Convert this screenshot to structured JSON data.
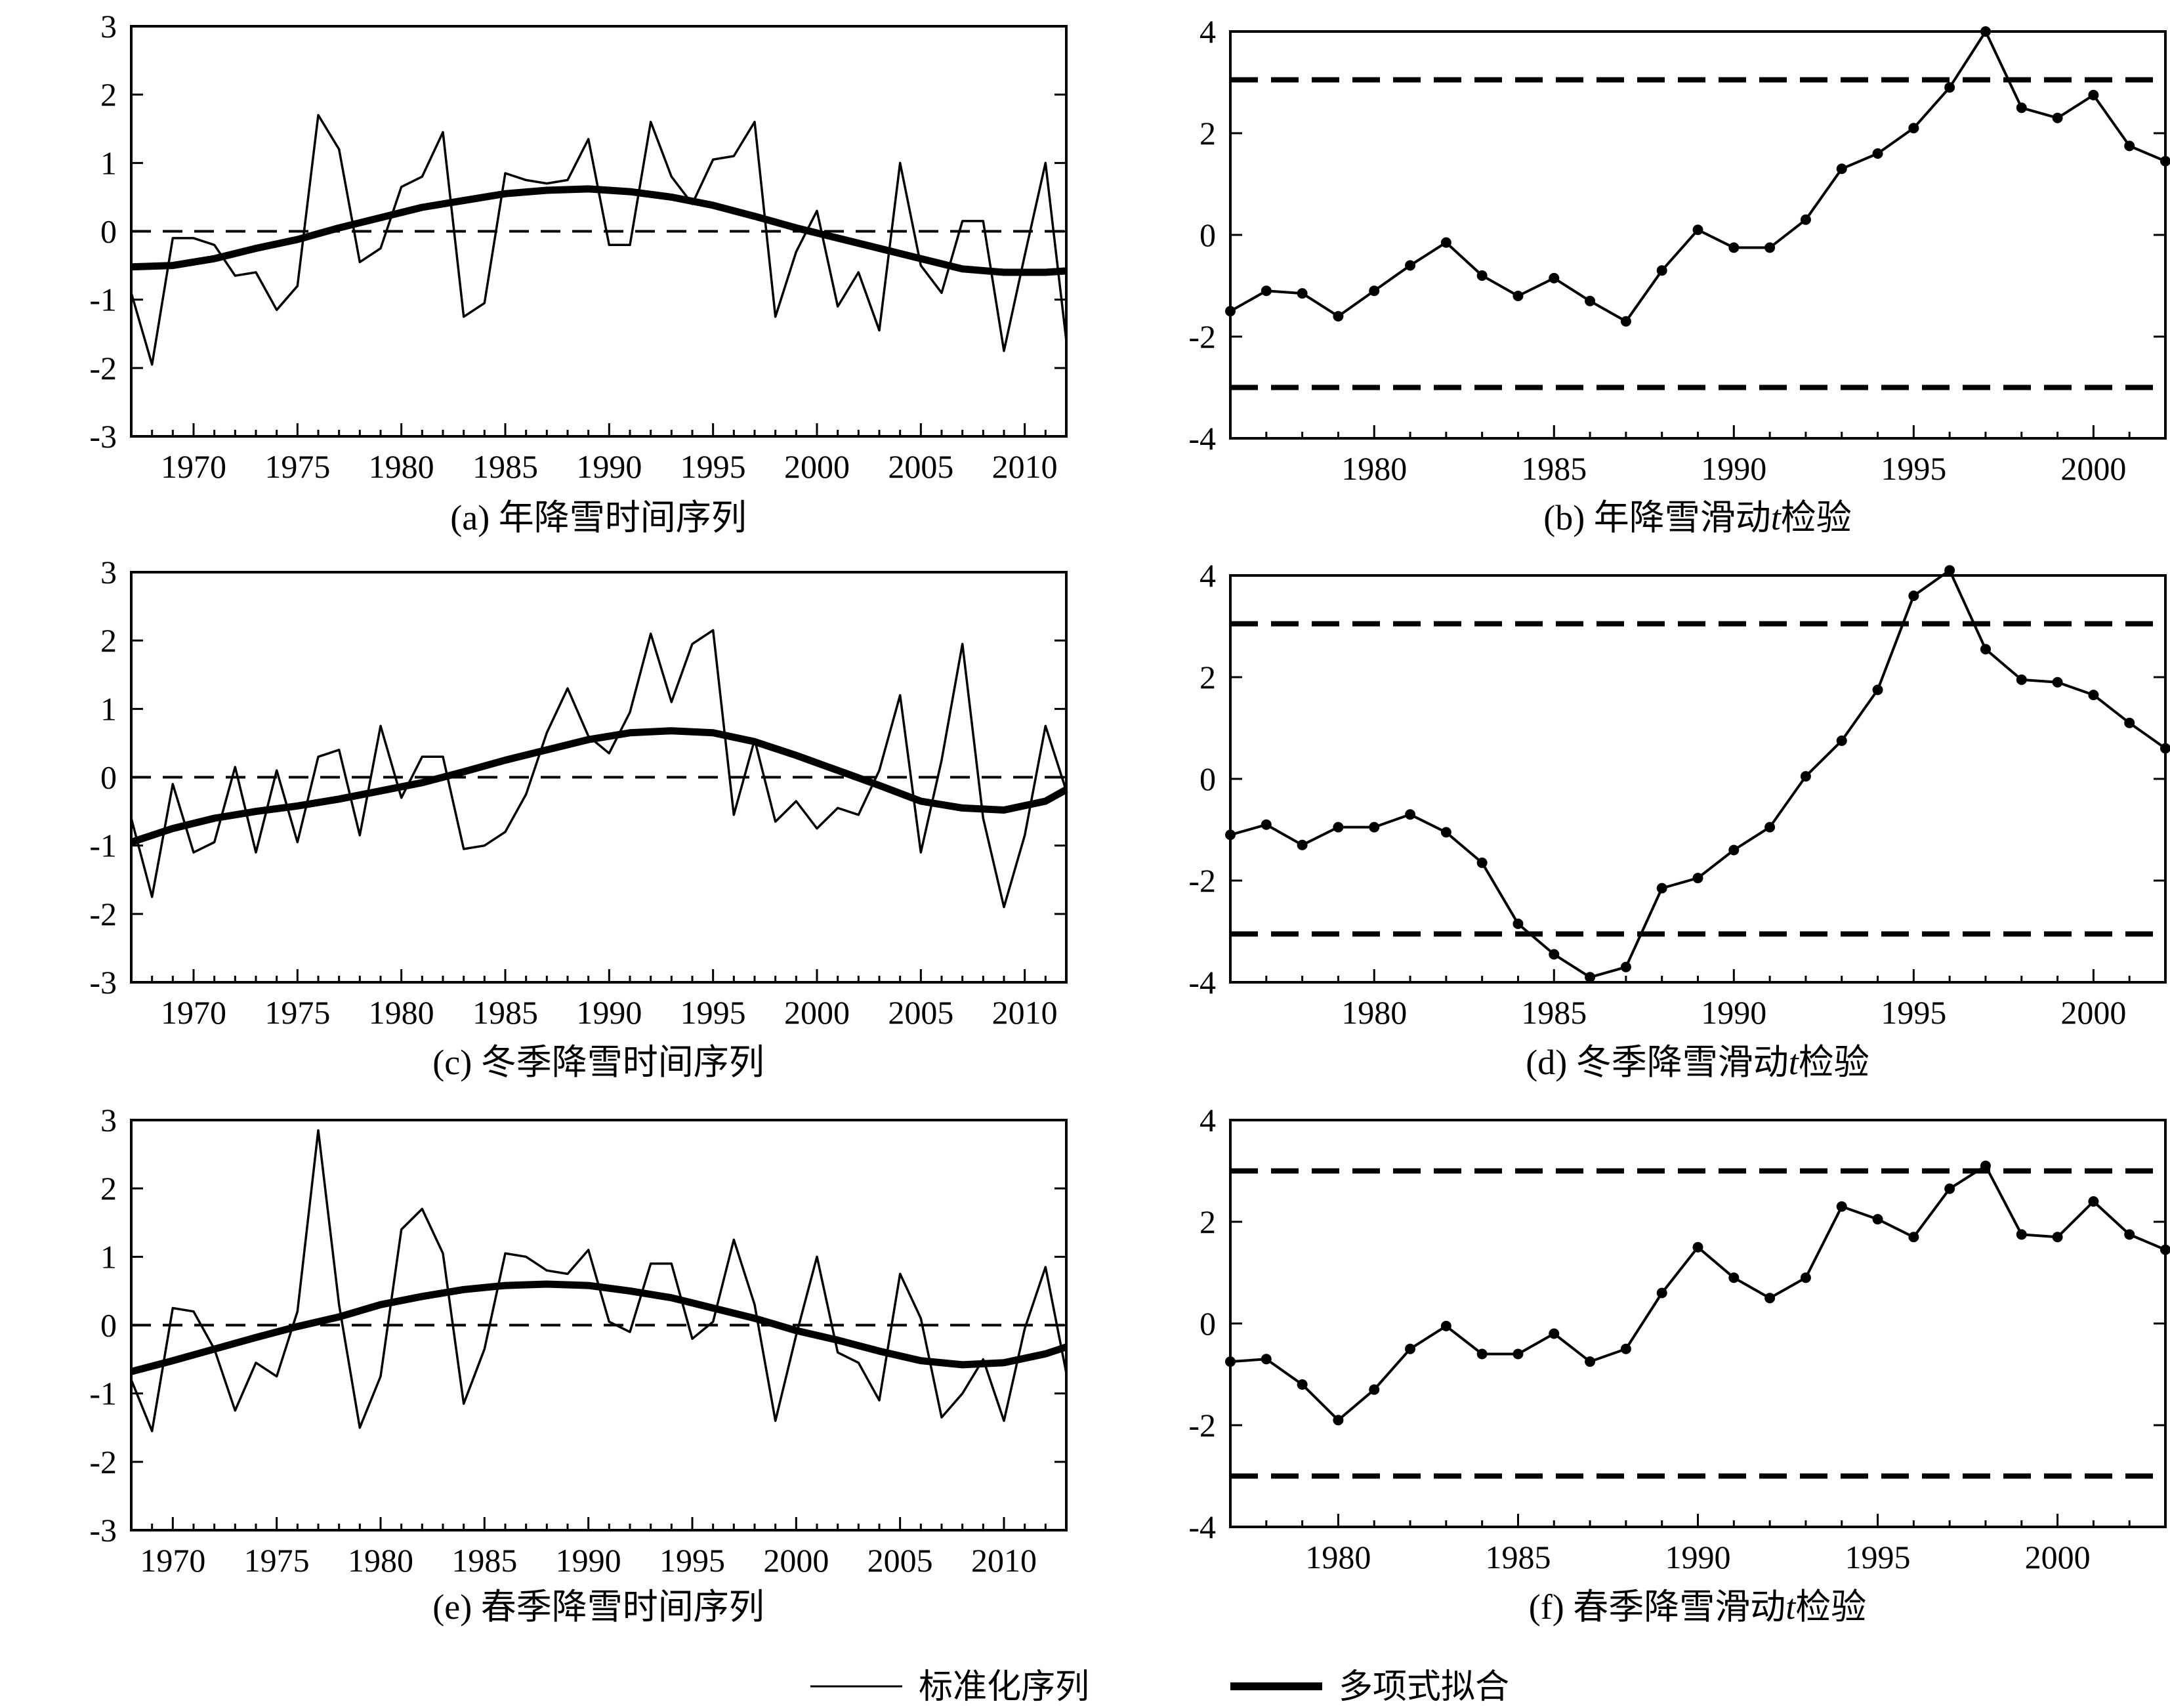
{
  "chart_data": [
    {
      "id": "a",
      "type": "line",
      "caption": "(a) 年降雪时间序列",
      "xlim": [
        1967,
        2012
      ],
      "ylim": [
        -3,
        3
      ],
      "xticks": [
        1970,
        1975,
        1980,
        1985,
        1990,
        1995,
        2000,
        2005,
        2010
      ],
      "yticks": [
        -3,
        -2,
        -1,
        0,
        1,
        2,
        3
      ],
      "ref_lines": [
        0
      ],
      "series": [
        {
          "role": "standardized",
          "x": [
            1967,
            1968,
            1969,
            1970,
            1971,
            1972,
            1973,
            1974,
            1975,
            1976,
            1977,
            1978,
            1979,
            1980,
            1981,
            1982,
            1983,
            1984,
            1985,
            1986,
            1987,
            1988,
            1989,
            1990,
            1991,
            1992,
            1993,
            1994,
            1995,
            1996,
            1997,
            1998,
            1999,
            2000,
            2001,
            2002,
            2003,
            2004,
            2005,
            2006,
            2007,
            2008,
            2009,
            2010,
            2011,
            2012
          ],
          "y": [
            -0.9,
            -1.95,
            -0.1,
            -0.1,
            -0.2,
            -0.65,
            -0.6,
            -1.15,
            -0.8,
            1.7,
            1.2,
            -0.45,
            -0.25,
            0.65,
            0.8,
            1.45,
            -1.25,
            -1.05,
            0.85,
            0.75,
            0.7,
            0.75,
            1.35,
            -0.2,
            -0.2,
            1.6,
            0.8,
            0.4,
            1.05,
            1.1,
            1.6,
            -1.25,
            -0.3,
            0.3,
            -1.1,
            -0.6,
            -1.45,
            1.0,
            -0.5,
            -0.9,
            0.15,
            0.15,
            -1.75,
            -0.35,
            1.0,
            -1.6
          ]
        },
        {
          "role": "polynomial",
          "x": [
            1967,
            1969,
            1971,
            1973,
            1975,
            1977,
            1979,
            1981,
            1983,
            1985,
            1987,
            1989,
            1991,
            1993,
            1995,
            1997,
            1999,
            2001,
            2003,
            2005,
            2007,
            2009,
            2011,
            2012
          ],
          "y": [
            -0.52,
            -0.5,
            -0.4,
            -0.25,
            -0.12,
            0.05,
            0.2,
            0.35,
            0.45,
            0.55,
            0.6,
            0.62,
            0.58,
            0.5,
            0.38,
            0.22,
            0.05,
            -0.1,
            -0.25,
            -0.4,
            -0.55,
            -0.6,
            -0.6,
            -0.58
          ]
        }
      ]
    },
    {
      "id": "b",
      "type": "line",
      "caption": "(b) 年降雪滑动",
      "caption_italic": "t",
      "caption_tail": "检验",
      "xlim": [
        1976,
        2002
      ],
      "ylim": [
        -4,
        4
      ],
      "xticks": [
        1980,
        1985,
        1990,
        1995,
        2000
      ],
      "yticks": [
        -4,
        -2,
        0,
        2,
        4
      ],
      "ref_lines": [
        3.05,
        -3.0
      ],
      "series": [
        {
          "role": "t_stat",
          "markers": true,
          "x": [
            1976,
            1977,
            1978,
            1979,
            1980,
            1981,
            1982,
            1983,
            1984,
            1985,
            1986,
            1987,
            1988,
            1989,
            1990,
            1991,
            1992,
            1993,
            1994,
            1995,
            1996,
            1997,
            1998,
            1999,
            2000,
            2001,
            2002
          ],
          "y": [
            -1.5,
            -1.1,
            -1.15,
            -1.6,
            -1.1,
            -0.6,
            -0.15,
            -0.8,
            -1.2,
            -0.85,
            -1.3,
            -1.7,
            -0.7,
            0.1,
            -0.25,
            -0.25,
            0.3,
            1.3,
            1.6,
            2.1,
            2.9,
            4.0,
            2.5,
            2.3,
            2.75,
            1.75,
            1.45
          ]
        }
      ]
    },
    {
      "id": "c",
      "type": "line",
      "caption": "(c) 冬季降雪时间序列",
      "xlim": [
        1967,
        2012
      ],
      "ylim": [
        -3,
        3
      ],
      "xticks": [
        1970,
        1975,
        1980,
        1985,
        1990,
        1995,
        2000,
        2005,
        2010
      ],
      "yticks": [
        -3,
        -2,
        -1,
        0,
        1,
        2,
        3
      ],
      "ref_lines": [
        0
      ],
      "series": [
        {
          "role": "standardized",
          "x": [
            1967,
            1968,
            1969,
            1970,
            1971,
            1972,
            1973,
            1974,
            1975,
            1976,
            1977,
            1978,
            1979,
            1980,
            1981,
            1982,
            1983,
            1984,
            1985,
            1986,
            1987,
            1988,
            1989,
            1990,
            1991,
            1992,
            1993,
            1994,
            1995,
            1996,
            1997,
            1998,
            1999,
            2000,
            2001,
            2002,
            2003,
            2004,
            2005,
            2006,
            2007,
            2008,
            2009,
            2010,
            2011,
            2012
          ],
          "y": [
            -0.6,
            -1.75,
            -0.1,
            -1.1,
            -0.95,
            0.15,
            -1.1,
            0.1,
            -0.95,
            0.3,
            0.4,
            -0.85,
            0.75,
            -0.3,
            0.3,
            0.3,
            -1.05,
            -1.0,
            -0.8,
            -0.25,
            0.65,
            1.3,
            0.6,
            0.35,
            0.95,
            2.1,
            1.1,
            1.95,
            2.15,
            -0.55,
            0.55,
            -0.65,
            -0.35,
            -0.75,
            -0.45,
            -0.55,
            0.1,
            1.2,
            -1.1,
            0.25,
            1.95,
            -0.6,
            -1.9,
            -0.85,
            0.75,
            -0.2
          ]
        },
        {
          "role": "polynomial",
          "x": [
            1967,
            1969,
            1971,
            1973,
            1975,
            1977,
            1979,
            1981,
            1983,
            1985,
            1987,
            1989,
            1991,
            1993,
            1995,
            1997,
            1999,
            2001,
            2003,
            2005,
            2007,
            2009,
            2011,
            2012
          ],
          "y": [
            -0.95,
            -0.75,
            -0.6,
            -0.5,
            -0.42,
            -0.32,
            -0.2,
            -0.08,
            0.08,
            0.25,
            0.4,
            0.55,
            0.65,
            0.68,
            0.65,
            0.52,
            0.32,
            0.1,
            -0.12,
            -0.35,
            -0.45,
            -0.48,
            -0.35,
            -0.18
          ]
        }
      ]
    },
    {
      "id": "d",
      "type": "line",
      "caption": "(d) 冬季降雪滑动",
      "caption_italic": "t",
      "caption_tail": "检验",
      "xlim": [
        1976,
        2002
      ],
      "ylim": [
        -4,
        4
      ],
      "xticks": [
        1980,
        1985,
        1990,
        1995,
        2000
      ],
      "yticks": [
        -4,
        -2,
        0,
        2,
        4
      ],
      "ref_lines": [
        3.05,
        -3.05
      ],
      "series": [
        {
          "role": "t_stat",
          "markers": true,
          "x": [
            1976,
            1977,
            1978,
            1979,
            1980,
            1981,
            1982,
            1983,
            1984,
            1985,
            1986,
            1987,
            1988,
            1989,
            1990,
            1991,
            1992,
            1993,
            1994,
            1995,
            1996,
            1997,
            1998,
            1999,
            2000,
            2001,
            2002
          ],
          "y": [
            -1.1,
            -0.9,
            -1.3,
            -0.95,
            -0.95,
            -0.7,
            -1.05,
            -1.65,
            -2.85,
            -3.45,
            -3.9,
            -3.7,
            -2.15,
            -1.95,
            -1.4,
            -0.95,
            0.05,
            0.75,
            1.75,
            3.6,
            4.1,
            2.55,
            1.95,
            1.9,
            1.65,
            1.1,
            0.6
          ]
        }
      ]
    },
    {
      "id": "e",
      "type": "line",
      "caption": "(e) 春季降雪时间序列",
      "xlim": [
        1968,
        2013
      ],
      "ylim": [
        -3,
        3
      ],
      "xticks": [
        1970,
        1975,
        1980,
        1985,
        1990,
        1995,
        2000,
        2005,
        2010
      ],
      "yticks": [
        -3,
        -2,
        -1,
        0,
        1,
        2,
        3
      ],
      "ref_lines": [
        0
      ],
      "series": [
        {
          "role": "standardized",
          "x": [
            1968,
            1969,
            1970,
            1971,
            1972,
            1973,
            1974,
            1975,
            1976,
            1977,
            1978,
            1979,
            1980,
            1981,
            1982,
            1983,
            1984,
            1985,
            1986,
            1987,
            1988,
            1989,
            1990,
            1991,
            1992,
            1993,
            1994,
            1995,
            1996,
            1997,
            1998,
            1999,
            2000,
            2001,
            2002,
            2003,
            2004,
            2005,
            2006,
            2007,
            2008,
            2009,
            2010,
            2011,
            2012,
            2013
          ],
          "y": [
            -0.8,
            -1.55,
            0.25,
            0.2,
            -0.35,
            -1.25,
            -0.55,
            -0.75,
            0.2,
            2.85,
            0.3,
            -1.5,
            -0.75,
            1.4,
            1.7,
            1.05,
            -1.15,
            -0.35,
            1.05,
            1.0,
            0.8,
            0.75,
            1.1,
            0.05,
            -0.1,
            0.9,
            0.9,
            -0.2,
            0.05,
            1.25,
            0.3,
            -1.4,
            -0.15,
            1.0,
            -0.4,
            -0.55,
            -1.1,
            0.75,
            0.1,
            -1.35,
            -1.0,
            -0.5,
            -1.4,
            -0.05,
            0.85,
            -0.7
          ]
        },
        {
          "role": "polynomial",
          "x": [
            1968,
            1970,
            1972,
            1974,
            1976,
            1978,
            1980,
            1982,
            1984,
            1986,
            1988,
            1990,
            1992,
            1994,
            1996,
            1998,
            2000,
            2002,
            2004,
            2006,
            2008,
            2010,
            2012,
            2013
          ],
          "y": [
            -0.68,
            -0.52,
            -0.35,
            -0.18,
            -0.02,
            0.12,
            0.3,
            0.42,
            0.52,
            0.58,
            0.6,
            0.58,
            0.5,
            0.4,
            0.25,
            0.1,
            -0.08,
            -0.22,
            -0.38,
            -0.52,
            -0.58,
            -0.55,
            -0.42,
            -0.32
          ]
        }
      ]
    },
    {
      "id": "f",
      "type": "line",
      "caption": "(f) 春季降雪滑动",
      "caption_italic": "t",
      "caption_tail": "检验",
      "xlim": [
        1977,
        2003
      ],
      "ylim": [
        -4,
        4
      ],
      "xticks": [
        1980,
        1985,
        1990,
        1995,
        2000
      ],
      "yticks": [
        -4,
        -2,
        0,
        2,
        4
      ],
      "ref_lines": [
        3.0,
        -3.0
      ],
      "series": [
        {
          "role": "t_stat",
          "markers": true,
          "x": [
            1977,
            1978,
            1979,
            1980,
            1981,
            1982,
            1983,
            1984,
            1985,
            1986,
            1987,
            1988,
            1989,
            1990,
            1991,
            1992,
            1993,
            1994,
            1995,
            1996,
            1997,
            1998,
            1999,
            2000,
            2001,
            2002,
            2003
          ],
          "y": [
            -0.75,
            -0.7,
            -1.2,
            -1.9,
            -1.3,
            -0.5,
            -0.05,
            -0.6,
            -0.6,
            -0.2,
            -0.75,
            -0.5,
            0.6,
            1.5,
            0.9,
            0.5,
            0.9,
            2.3,
            2.05,
            1.7,
            2.65,
            3.1,
            1.75,
            1.7,
            2.4,
            1.75,
            1.45
          ]
        }
      ]
    }
  ],
  "legend": {
    "items": [
      {
        "label": "标准化序列",
        "role": "standardized"
      },
      {
        "label": "多项式拟合",
        "role": "polynomial"
      }
    ]
  }
}
